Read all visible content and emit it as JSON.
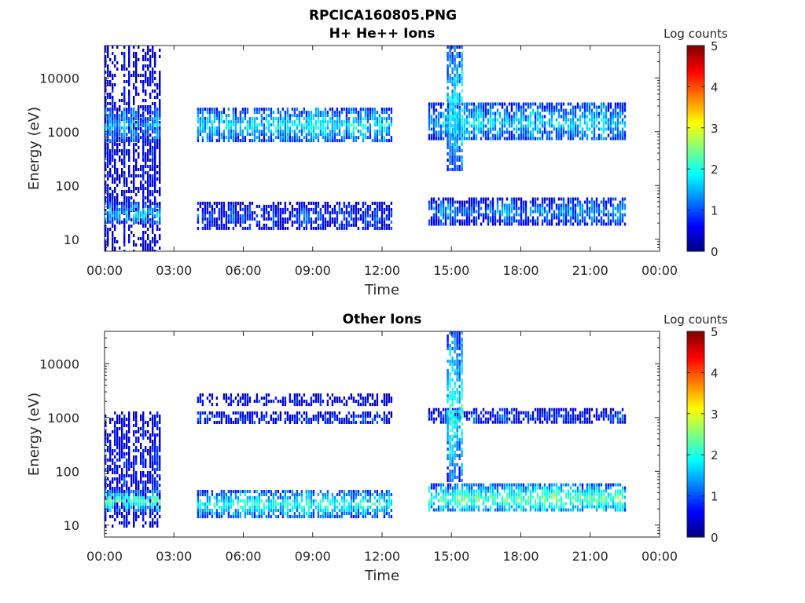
{
  "figure_title": "RPCICA160805.PNG",
  "chart_data": [
    {
      "type": "heatmap",
      "title": "H+ He++ Ions",
      "xlabel": "Time",
      "ylabel": "Energy (eV)",
      "y_scale": "log",
      "xlim": [
        0,
        24
      ],
      "ylim": [
        6,
        40000
      ],
      "x_tick_labels": [
        "00:00",
        "03:00",
        "06:00",
        "09:00",
        "12:00",
        "15:00",
        "18:00",
        "21:00",
        "00:00"
      ],
      "y_tick_labels": [
        "10",
        "100",
        "1000",
        "10000"
      ],
      "colorbar": {
        "label": "Log counts",
        "range": [
          0,
          5
        ],
        "tick_labels": [
          "0",
          "1",
          "2",
          "3",
          "4",
          "5"
        ],
        "colormap": "jet"
      },
      "data_gaps": [
        [
          2.4,
          4.0
        ],
        [
          12.4,
          14.0
        ],
        [
          22.5,
          24.0
        ]
      ],
      "bands": [
        {
          "t": [
            0.0,
            2.4
          ],
          "e": [
            6,
            40000
          ],
          "level": 0.5
        },
        {
          "t": [
            0.0,
            2.4
          ],
          "e": [
            700,
            2800
          ],
          "level": 1.6
        },
        {
          "t": [
            0.0,
            2.4
          ],
          "e": [
            20,
            50
          ],
          "level": 1.5
        },
        {
          "t": [
            4.0,
            12.4
          ],
          "e": [
            700,
            2800
          ],
          "level": 1.8
        },
        {
          "t": [
            4.0,
            12.4
          ],
          "e": [
            15,
            50
          ],
          "level": 0.9
        },
        {
          "t": [
            14.0,
            22.5
          ],
          "e": [
            700,
            3500
          ],
          "level": 1.6
        },
        {
          "t": [
            14.0,
            22.5
          ],
          "e": [
            20,
            60
          ],
          "level": 1.3
        },
        {
          "t": [
            14.8,
            15.5
          ],
          "e": [
            200,
            40000
          ],
          "level": 2.0
        }
      ]
    },
    {
      "type": "heatmap",
      "title": "Other Ions",
      "xlabel": "Time",
      "ylabel": "Energy (eV)",
      "y_scale": "log",
      "xlim": [
        0,
        24
      ],
      "ylim": [
        6,
        40000
      ],
      "x_tick_labels": [
        "00:00",
        "03:00",
        "06:00",
        "09:00",
        "12:00",
        "15:00",
        "18:00",
        "21:00",
        "00:00"
      ],
      "y_tick_labels": [
        "10",
        "100",
        "1000",
        "10000"
      ],
      "colorbar": {
        "label": "Log counts",
        "range": [
          0,
          5
        ],
        "tick_labels": [
          "0",
          "1",
          "2",
          "3",
          "4",
          "5"
        ],
        "colormap": "jet"
      },
      "data_gaps": [
        [
          2.4,
          4.0
        ],
        [
          12.4,
          14.0
        ],
        [
          22.5,
          24.0
        ]
      ],
      "bands": [
        {
          "t": [
            0.0,
            2.4
          ],
          "e": [
            10,
            1300
          ],
          "level": 0.6
        },
        {
          "t": [
            0.0,
            2.4
          ],
          "e": [
            20,
            45
          ],
          "level": 2.2
        },
        {
          "t": [
            4.0,
            12.4
          ],
          "e": [
            800,
            1300
          ],
          "level": 0.8
        },
        {
          "t": [
            4.0,
            12.4
          ],
          "e": [
            1800,
            2800
          ],
          "level": 0.5
        },
        {
          "t": [
            4.0,
            12.4
          ],
          "e": [
            15,
            45
          ],
          "level": 2.0
        },
        {
          "t": [
            14.0,
            22.5
          ],
          "e": [
            800,
            1500
          ],
          "level": 0.9
        },
        {
          "t": [
            14.0,
            22.5
          ],
          "e": [
            18,
            60
          ],
          "level": 2.3
        },
        {
          "t": [
            14.8,
            15.5
          ],
          "e": [
            70,
            40000
          ],
          "level": 1.9
        }
      ]
    }
  ]
}
